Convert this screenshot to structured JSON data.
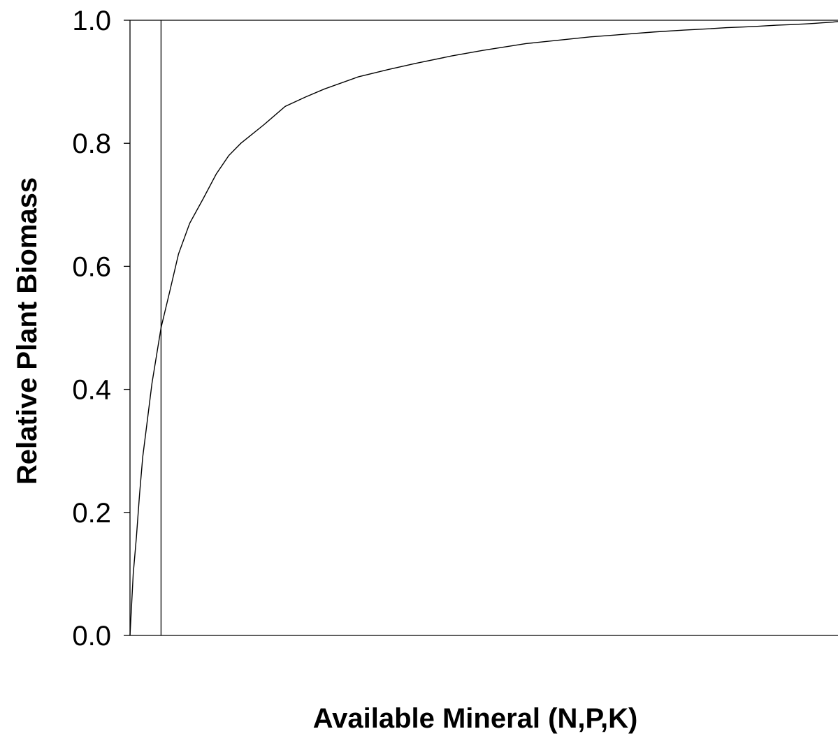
{
  "chart_data": {
    "type": "line",
    "title": "",
    "xlabel": "Available Mineral (N,P,K)",
    "ylabel": "Relative Plant Biomass",
    "ylim": [
      0,
      1
    ],
    "yticks": [
      "0.0",
      "0.2",
      "0.4",
      "0.6",
      "0.8",
      "1.0"
    ],
    "xticks": [],
    "grid": false,
    "legend": "none",
    "line_color": "#000000",
    "axis_color": "#000000",
    "series": [
      {
        "x": [
          0,
          0.1,
          0.2,
          0.3,
          0.4,
          0.5,
          0.7,
          1,
          1.3,
          1.6,
          2,
          2.5,
          3,
          3.5,
          4,
          5,
          6,
          7,
          8,
          10,
          12,
          14,
          17,
          20,
          25,
          30,
          35,
          40,
          50,
          60,
          70,
          80,
          90,
          100,
          120,
          140,
          160,
          180,
          200,
          230,
          250
        ],
        "y": [
          0,
          0.1,
          0.16,
          0.23,
          0.29,
          0.33,
          0.41,
          0.5,
          0.56,
          0.62,
          0.67,
          0.71,
          0.75,
          0.78,
          0.8,
          0.83,
          0.86,
          0.875,
          0.888,
          0.908,
          0.92,
          0.93,
          0.942,
          0.951,
          0.962,
          0.968,
          0.973,
          0.976,
          0.981,
          0.984,
          0.986,
          0.988,
          0.989,
          0.99,
          0.992,
          0.993,
          0.994,
          0.995,
          0.996,
          0.997,
          0.998
        ]
      }
    ],
    "reference_lines": [
      {
        "orientation": "vertical",
        "x": 1
      }
    ]
  }
}
